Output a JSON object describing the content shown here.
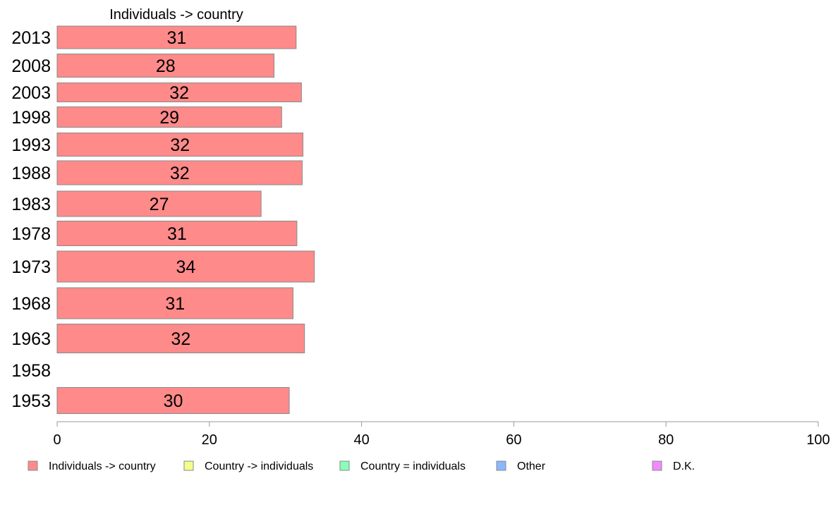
{
  "chart_data": {
    "type": "bar",
    "orientation": "horizontal",
    "title": "Individuals -> country",
    "categories": [
      "2013",
      "2008",
      "2003",
      "1998",
      "1993",
      "1988",
      "1983",
      "1978",
      "1973",
      "1968",
      "1963",
      "1958",
      "1953"
    ],
    "series": [
      {
        "name": "Individuals -> country",
        "color": "#ff8a8a",
        "values": [
          31.4,
          28.5,
          32.1,
          29.5,
          32.3,
          32.2,
          26.8,
          31.5,
          33.8,
          31.0,
          32.5,
          null,
          30.5
        ],
        "labels": [
          "31",
          "28",
          "32",
          "29",
          "32",
          "32",
          "27",
          "31",
          "34",
          "31",
          "32",
          "",
          "30"
        ]
      }
    ],
    "xlim": [
      0,
      100
    ],
    "xticks": [
      "0",
      "20",
      "40",
      "60",
      "80",
      "100"
    ],
    "grid": false,
    "legend_position": "bottom",
    "legend": [
      {
        "label": "Individuals -> country",
        "color": "#ff8a8a"
      },
      {
        "label": "Country -> individuals",
        "color": "#f2ff8a"
      },
      {
        "label": "Country = individuals",
        "color": "#8affb8"
      },
      {
        "label": "Other",
        "color": "#8ab8ff"
      },
      {
        "label": "D.K.",
        "color": "#f28aff"
      }
    ]
  }
}
